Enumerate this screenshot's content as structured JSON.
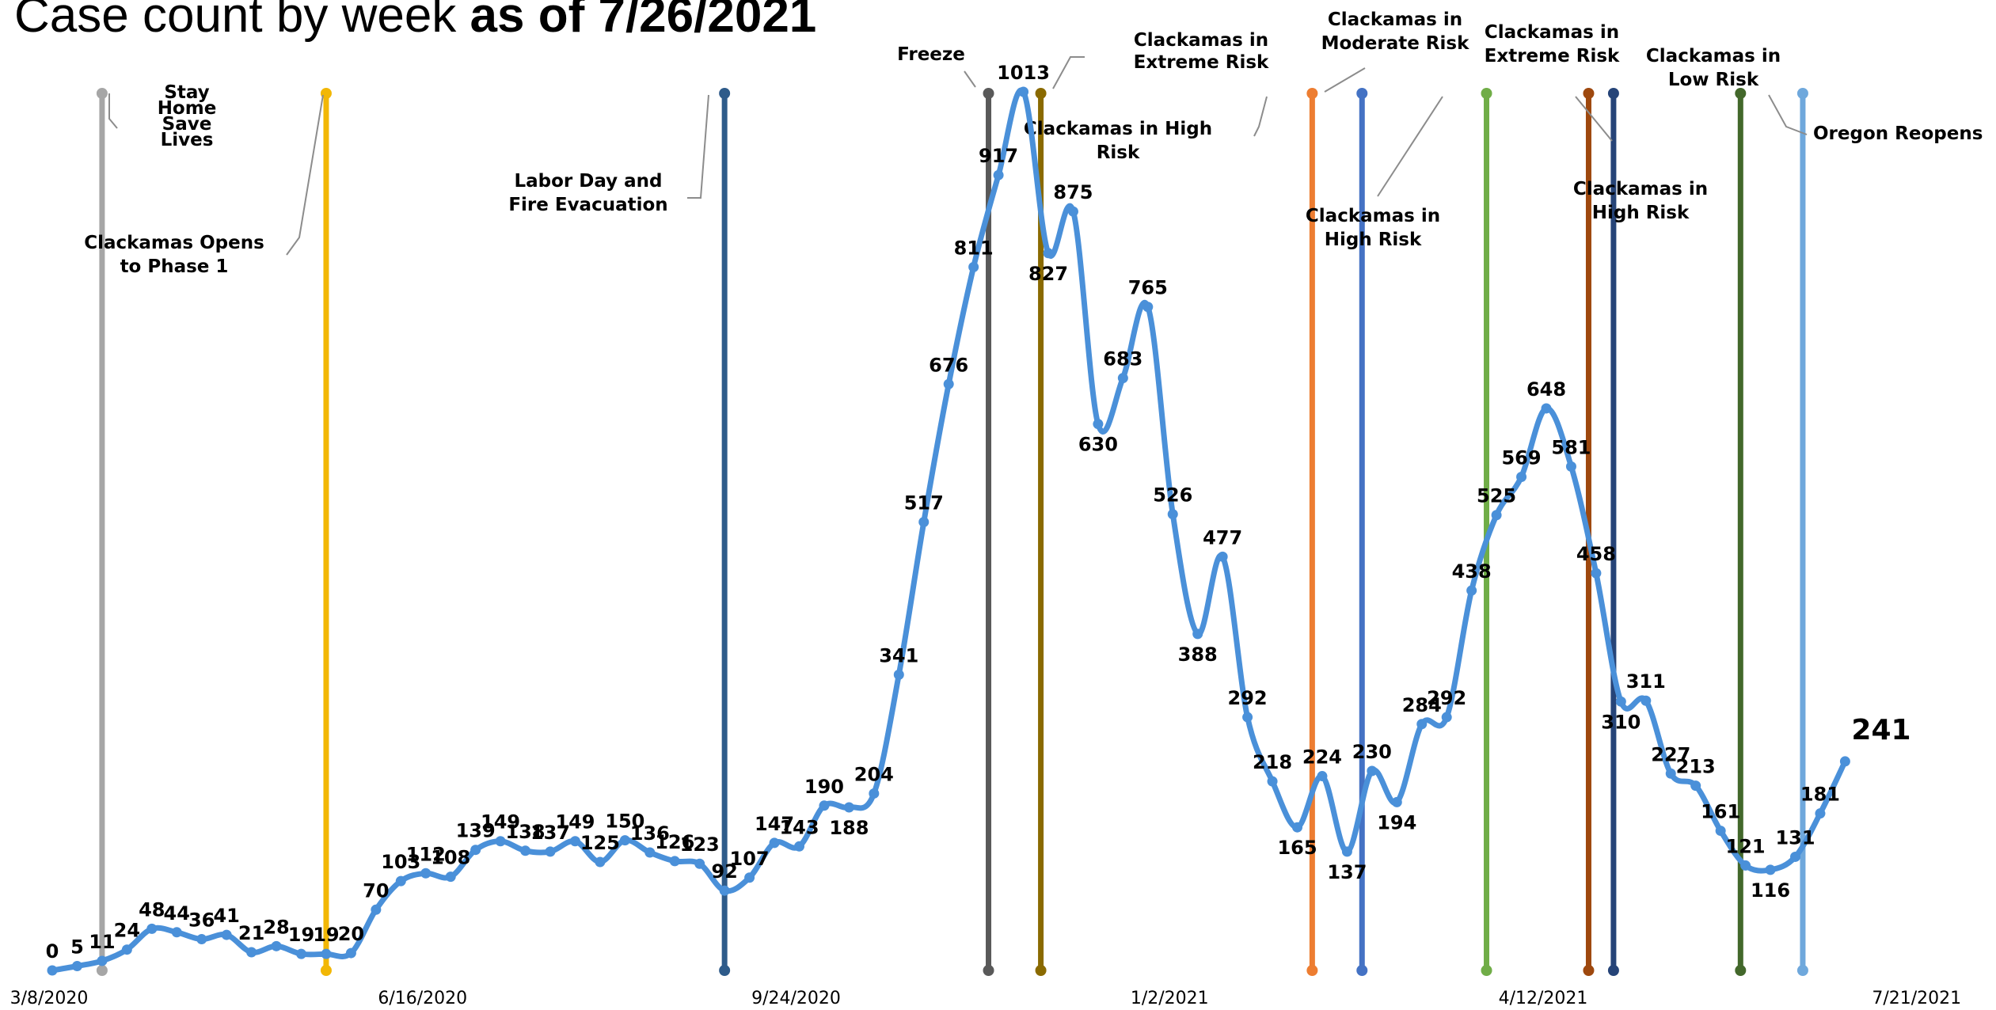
{
  "title": {
    "prefix": "Case count by week ",
    "bold": "as of 7/26/2021"
  },
  "chart_data": {
    "type": "line",
    "title": "Case count by week as of 7/26/2021",
    "xlabel": "",
    "ylabel": "",
    "ylim": [
      0,
      1013
    ],
    "x_tick_labels": [
      "3/8/2020",
      "6/16/2020",
      "9/24/2020",
      "1/2/2021",
      "4/12/2021",
      "7/21/2021"
    ],
    "series_color": "#4a90d9",
    "values": [
      0,
      5,
      11,
      24,
      48,
      44,
      36,
      41,
      21,
      28,
      19,
      19,
      20,
      70,
      103,
      112,
      108,
      139,
      149,
      138,
      137,
      149,
      125,
      150,
      136,
      126,
      123,
      92,
      107,
      147,
      143,
      190,
      188,
      204,
      341,
      517,
      676,
      811,
      917,
      1013,
      827,
      875,
      630,
      683,
      765,
      526,
      388,
      477,
      292,
      218,
      165,
      224,
      137,
      230,
      194,
      284,
      292,
      438,
      525,
      569,
      648,
      581,
      458,
      310,
      311,
      227,
      213,
      161,
      121,
      116,
      131,
      181,
      241
    ],
    "event_lines": [
      {
        "week": 2,
        "color": "#a6a6a6",
        "label": [
          "Stay",
          "Home",
          "Save",
          "Lives"
        ]
      },
      {
        "week": 11,
        "color": "#f2b705",
        "label": [
          "Clackamas Opens",
          "to Phase 1"
        ]
      },
      {
        "week": 27,
        "color": "#2e5b8a",
        "label": [
          "Labor Day and",
          "Fire Evacuation"
        ]
      },
      {
        "week": 37.6,
        "color": "#595959",
        "label": [
          "Freeze"
        ]
      },
      {
        "week": 39.7,
        "color": "#8a6a00",
        "label": [
          "Clackamas in High",
          "Risk"
        ]
      },
      {
        "week": 50.6,
        "color": "#ed7d31",
        "label": [
          "Clackamas in",
          "Extreme Risk"
        ]
      },
      {
        "week": 52.6,
        "color": "#4472c4",
        "label": [
          "Clackamas in",
          "Moderate Risk"
        ]
      },
      {
        "week": 57.6,
        "color": "#70ad47",
        "label": [
          "Clackamas in",
          "High Risk"
        ]
      },
      {
        "week": 61.7,
        "color": "#9e480e",
        "label": [
          "Clackamas in",
          "Extreme Risk"
        ]
      },
      {
        "week": 62.7,
        "color": "#264478",
        "label": [
          "Clackamas in",
          "High Risk"
        ]
      },
      {
        "week": 67.8,
        "color": "#43682b",
        "label": [
          "Clackamas in",
          "Low Risk"
        ]
      },
      {
        "week": 70.3,
        "color": "#6fa8dc",
        "label": [
          "Oregon Reopens"
        ]
      }
    ]
  }
}
